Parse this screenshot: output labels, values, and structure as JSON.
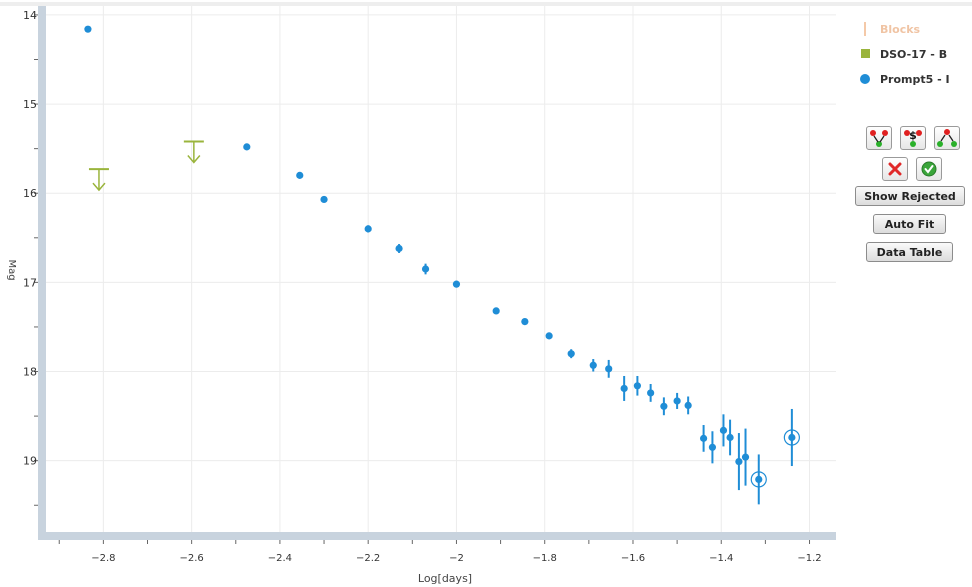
{
  "chart_data": {
    "type": "scatter",
    "xlabel": "Log[days]",
    "ylabel": "Mag",
    "xlim": [
      -2.93,
      -1.14
    ],
    "ylim": [
      19.8,
      13.9
    ],
    "y_reversed": true,
    "x_ticks": [
      -2.8,
      -2.6,
      -2.4,
      -2.2,
      -2,
      -1.8,
      -1.6,
      -1.4,
      -1.2
    ],
    "y_ticks": [
      14,
      15,
      16,
      17,
      18,
      19
    ],
    "grid": true,
    "legend_position": "right",
    "series": [
      {
        "name": "Blocks",
        "color": "#f4c9a8",
        "hidden": true,
        "points": []
      },
      {
        "name": "DSO-17 - B",
        "color": "#9ab43c",
        "marker": "upper-limit",
        "points": [
          {
            "x": -2.81,
            "y": 15.73
          },
          {
            "x": -2.595,
            "y": 15.42
          }
        ]
      },
      {
        "name": "Prompt5 - I",
        "color": "#1f8dd6",
        "marker": "circle",
        "points": [
          {
            "x": -2.835,
            "y": 14.16,
            "err": 0
          },
          {
            "x": -2.475,
            "y": 15.48,
            "err": 0
          },
          {
            "x": -2.355,
            "y": 15.8,
            "err": 0
          },
          {
            "x": -2.3,
            "y": 16.07,
            "err": 0
          },
          {
            "x": -2.2,
            "y": 16.4,
            "err": 0.04
          },
          {
            "x": -2.13,
            "y": 16.62,
            "err": 0.05
          },
          {
            "x": -2.07,
            "y": 16.85,
            "err": 0.06
          },
          {
            "x": -2.0,
            "y": 17.02,
            "err": 0.03
          },
          {
            "x": -1.91,
            "y": 17.32,
            "err": 0.03
          },
          {
            "x": -1.845,
            "y": 17.44,
            "err": 0.03
          },
          {
            "x": -1.79,
            "y": 17.6,
            "err": 0.03
          },
          {
            "x": -1.74,
            "y": 17.8,
            "err": 0.05
          },
          {
            "x": -1.69,
            "y": 17.93,
            "err": 0.07
          },
          {
            "x": -1.655,
            "y": 17.97,
            "err": 0.1
          },
          {
            "x": -1.62,
            "y": 18.19,
            "err": 0.14
          },
          {
            "x": -1.59,
            "y": 18.16,
            "err": 0.11
          },
          {
            "x": -1.56,
            "y": 18.24,
            "err": 0.1
          },
          {
            "x": -1.53,
            "y": 18.39,
            "err": 0.1
          },
          {
            "x": -1.5,
            "y": 18.33,
            "err": 0.09
          },
          {
            "x": -1.475,
            "y": 18.38,
            "err": 0.1
          },
          {
            "x": -1.44,
            "y": 18.75,
            "err": 0.15
          },
          {
            "x": -1.42,
            "y": 18.85,
            "err": 0.18
          },
          {
            "x": -1.395,
            "y": 18.66,
            "err": 0.18
          },
          {
            "x": -1.38,
            "y": 18.74,
            "err": 0.2
          },
          {
            "x": -1.36,
            "y": 19.01,
            "err": 0.32
          },
          {
            "x": -1.345,
            "y": 18.96,
            "err": 0.32
          },
          {
            "x": -1.315,
            "y": 19.21,
            "err": 0.28,
            "circled": true
          },
          {
            "x": -1.24,
            "y": 18.74,
            "err": 0.32,
            "circled": true
          }
        ]
      }
    ]
  },
  "legend": {
    "items": [
      {
        "label": "Blocks"
      },
      {
        "label": "DSO-17 - B"
      },
      {
        "label": "Prompt5 - I"
      }
    ]
  },
  "toolbar": {
    "icons": [
      "fit-select-icon",
      "fit-dollar-icon",
      "fit-break-icon",
      "reject-icon",
      "accept-icon"
    ],
    "show_rejected": "Show Rejected",
    "auto_fit": "Auto Fit",
    "data_table": "Data Table"
  }
}
